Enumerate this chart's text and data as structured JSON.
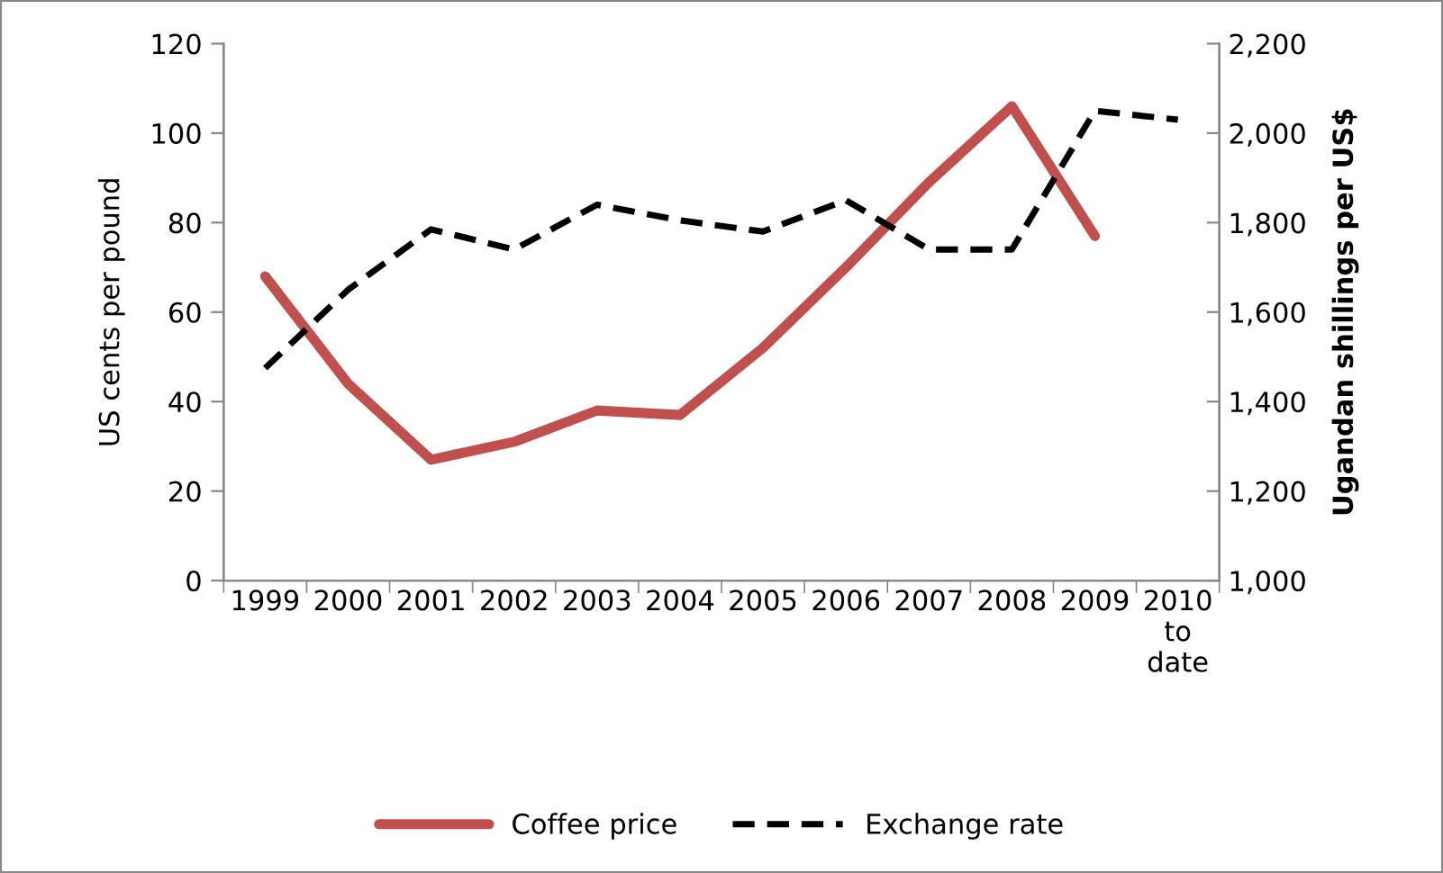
{
  "chart_data": {
    "type": "line",
    "categories": [
      "1999",
      "2000",
      "2001",
      "2002",
      "2003",
      "2004",
      "2005",
      "2006",
      "2007",
      "2008",
      "2009",
      "2010\nto\ndate"
    ],
    "ylabel": "US cents per pound",
    "y2label": "Ugandan shillings per US$",
    "ylim": [
      0,
      120
    ],
    "yticks": [
      0,
      20,
      40,
      60,
      80,
      100,
      120
    ],
    "y2lim": [
      1000,
      2200
    ],
    "y2ticks": [
      {
        "value": 1000,
        "label": "1,000"
      },
      {
        "value": 1200,
        "label": "1,200"
      },
      {
        "value": 1400,
        "label": "1,400"
      },
      {
        "value": 1600,
        "label": "1,600"
      },
      {
        "value": 1800,
        "label": "1,800"
      },
      {
        "value": 2000,
        "label": "2,000"
      },
      {
        "value": 2200,
        "label": "2,200"
      }
    ],
    "series": [
      {
        "name": "Coffee price",
        "color": "#c0504d",
        "line_style": "solid",
        "values": [
          68,
          44,
          27,
          31,
          38,
          37,
          52,
          70,
          89,
          106,
          77,
          null
        ]
      },
      {
        "name": "Exchange rate",
        "color": "#000000",
        "line_style": "dashed",
        "axis": "y2",
        "values": [
          1475,
          1650,
          1785,
          1740,
          1840,
          1805,
          1780,
          1850,
          1740,
          1740,
          2050,
          2030
        ]
      }
    ],
    "legend": "bottom",
    "grid": false
  }
}
